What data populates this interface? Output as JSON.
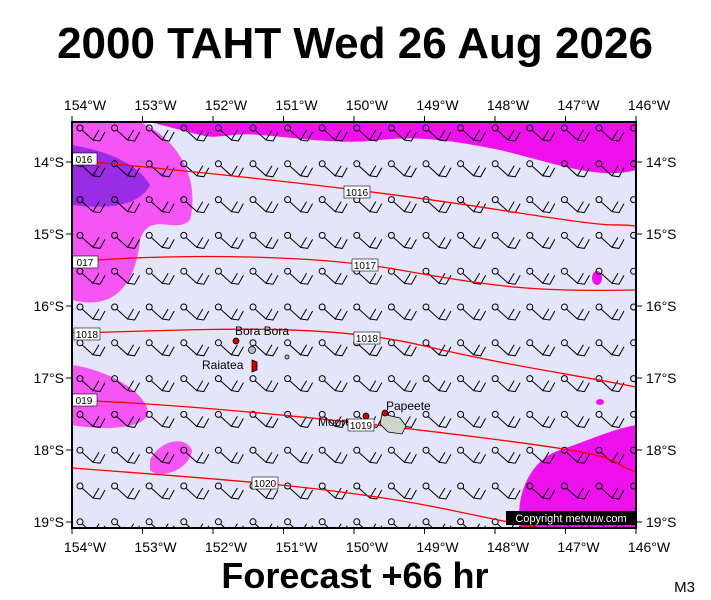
{
  "title": "2000 TAHT Wed 26 Aug 2026",
  "longitude_labels": [
    "154°W",
    "153°W",
    "152°W",
    "151°W",
    "150°W",
    "149°W",
    "148°W",
    "147°W",
    "146°W"
  ],
  "latitude_labels": [
    "14°S",
    "15°S",
    "16°S",
    "17°S",
    "18°S",
    "19°S"
  ],
  "isobar_labels": [
    "016",
    "1016",
    "017",
    "1017",
    "1018",
    "1018",
    "019",
    "1019",
    "1020"
  ],
  "places": [
    "Bora Bora",
    "Raiatea",
    "Moorea",
    "Papeete"
  ],
  "copyright": "Copyright metvuw.com",
  "footer": "Forecast +66 hr",
  "code": "M3"
}
